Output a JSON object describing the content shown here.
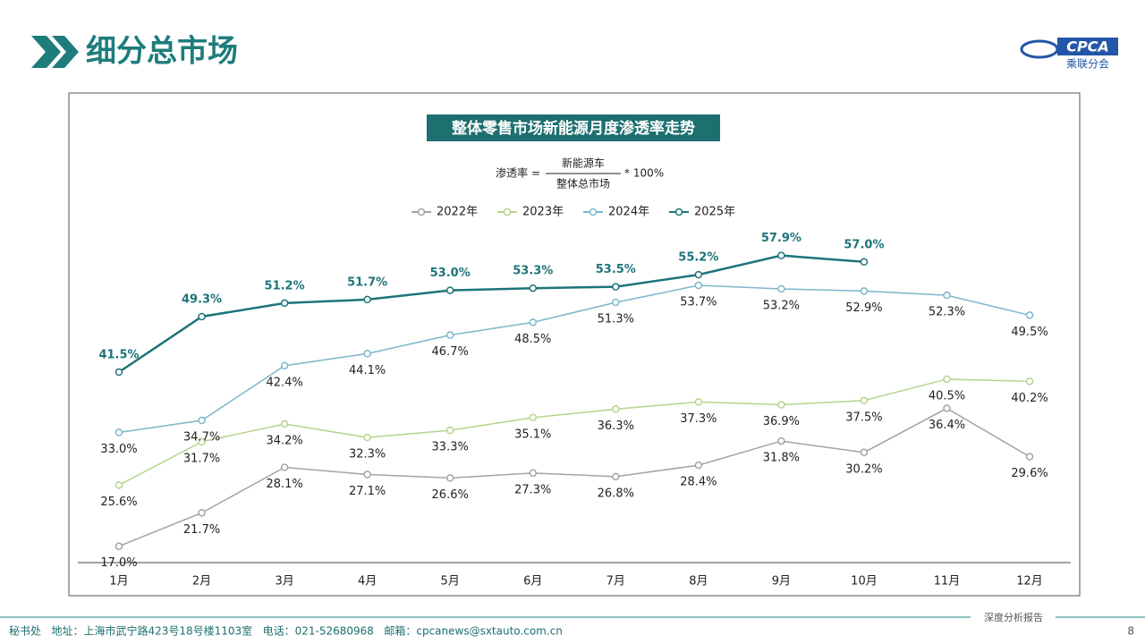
{
  "header": {
    "title": "细分总市场",
    "logo": "CPCA",
    "logo_sub": "乘联分会"
  },
  "chart_data": {
    "type": "line",
    "title": "整体零售市场新能源月度渗透率走势",
    "formula": {
      "lhs": "渗透率 =",
      "numerator": "新能源车",
      "denominator": "整体总市场",
      "factor": "* 100%"
    },
    "categories": [
      "1月",
      "2月",
      "3月",
      "4月",
      "5月",
      "6月",
      "7月",
      "8月",
      "9月",
      "10月",
      "11月",
      "12月"
    ],
    "ylim": [
      14.7,
      80
    ],
    "series": [
      {
        "name": "2022年",
        "color": "#a3a3a3",
        "values": [
          17.0,
          21.7,
          28.1,
          27.1,
          26.6,
          27.3,
          26.8,
          28.4,
          31.8,
          30.2,
          36.4,
          29.6
        ],
        "value_labels": [
          "17.0%",
          "21.7%",
          "28.1%",
          "27.1%",
          "26.6%",
          "27.3%",
          "26.8%",
          "28.4%",
          "31.8%",
          "30.2%",
          "36.4%",
          "29.6%"
        ]
      },
      {
        "name": "2023年",
        "color": "#b6d48c",
        "values": [
          25.6,
          31.7,
          34.2,
          32.3,
          33.3,
          35.1,
          36.3,
          37.3,
          36.9,
          37.5,
          40.5,
          40.2
        ],
        "value_labels": [
          "25.6%",
          "31.7%",
          "34.2%",
          "32.3%",
          "33.3%",
          "35.1%",
          "36.3%",
          "37.3%",
          "36.9%",
          "37.5%",
          "40.5%",
          "40.2%"
        ]
      },
      {
        "name": "2024年",
        "color": "#7db6cb",
        "values": [
          33.0,
          34.7,
          42.4,
          44.1,
          46.7,
          48.5,
          51.3,
          53.7,
          53.2,
          52.9,
          52.3,
          49.5
        ],
        "value_labels": [
          "33.0%",
          "34.7%",
          "42.4%",
          "44.1%",
          "46.7%",
          "48.5%",
          "51.3%",
          "53.7%",
          "53.2%",
          "52.9%",
          "52.3%",
          "49.5%"
        ]
      },
      {
        "name": "2025年",
        "color": "#1d7479",
        "values": [
          41.5,
          49.3,
          51.2,
          51.7,
          53.0,
          53.3,
          53.5,
          55.2,
          57.9,
          57.0,
          null,
          null
        ],
        "value_labels": [
          "41.5%",
          "49.3%",
          "51.2%",
          "51.7%",
          "53.0%",
          "53.3%",
          "53.5%",
          "55.2%",
          "57.9%",
          "57.0%",
          null,
          null
        ]
      }
    ]
  },
  "footer": {
    "contact": "秘书处   地址：上海市武宁路423号18号楼1103室   电话：021-52680968   邮箱：cpcanews@sxtauto.com.cn",
    "report": "深度分析报告",
    "page": "8"
  }
}
